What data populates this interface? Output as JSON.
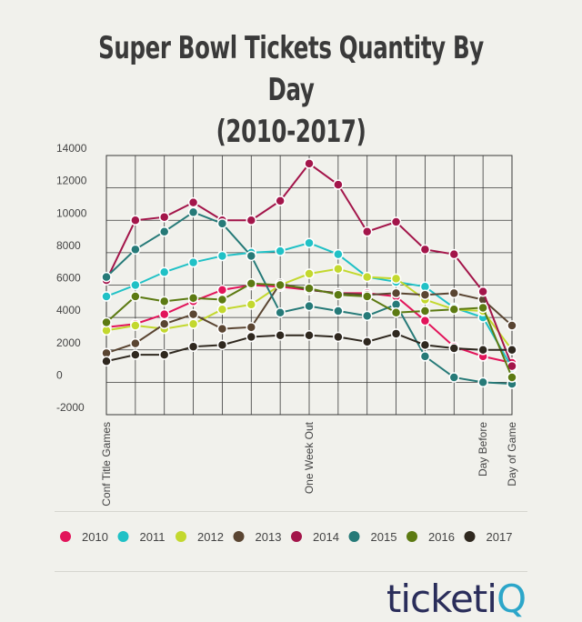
{
  "chart_data": {
    "type": "line",
    "title": "Super Bowl Tickets Quantity By Day",
    "subtitle": "(2010-2017)",
    "xlabel": "",
    "ylabel": "",
    "ylim": [
      -2000,
      14000
    ],
    "yticks": [
      14000,
      12000,
      10000,
      8000,
      6000,
      4000,
      2000,
      0,
      -2000
    ],
    "grid": true,
    "legend_position": "bottom",
    "x_labels": [
      {
        "index": 0,
        "label": "Conf Title Games"
      },
      {
        "index": 7,
        "label": "One Week Out"
      },
      {
        "index": 13,
        "label": "Day Before"
      },
      {
        "index": 14,
        "label": "Day of Game"
      }
    ],
    "series": [
      {
        "name": "2010",
        "color": "#e2145a",
        "values": [
          3400,
          3600,
          4200,
          5000,
          5700,
          6000,
          5900,
          5700,
          5500,
          5500,
          5300,
          3800,
          2200,
          1600,
          1200
        ]
      },
      {
        "name": "2011",
        "color": "#20c1c6",
        "values": [
          5300,
          6000,
          6800,
          7400,
          7800,
          8000,
          8100,
          8600,
          7900,
          6500,
          6200,
          5900,
          4600,
          4000,
          900
        ]
      },
      {
        "name": "2012",
        "color": "#c3d82e",
        "values": [
          3200,
          3500,
          3300,
          3600,
          4500,
          4800,
          6000,
          6700,
          7000,
          6500,
          6400,
          5100,
          4500,
          4400,
          2000
        ]
      },
      {
        "name": "2013",
        "color": "#5a4532",
        "values": [
          1800,
          2400,
          3600,
          4200,
          3300,
          3400,
          6100,
          5700,
          5500,
          5400,
          5500,
          5400,
          5500,
          5100,
          3500
        ]
      },
      {
        "name": "2014",
        "color": "#a3154a",
        "values": [
          6300,
          10000,
          10200,
          11100,
          10000,
          10000,
          11200,
          13500,
          12200,
          9300,
          9900,
          8200,
          7900,
          5600,
          1000
        ]
      },
      {
        "name": "2015",
        "color": "#267a78",
        "values": [
          6500,
          8200,
          9300,
          10500,
          9800,
          7800,
          4300,
          4700,
          4400,
          4100,
          4800,
          1600,
          300,
          0,
          -100
        ]
      },
      {
        "name": "2016",
        "color": "#5c7a12",
        "values": [
          3700,
          5300,
          5000,
          5200,
          5100,
          6100,
          6000,
          5800,
          5400,
          5300,
          4300,
          4400,
          4500,
          4600,
          300
        ]
      },
      {
        "name": "2017",
        "color": "#2f281f",
        "values": [
          1300,
          1700,
          1700,
          2200,
          2300,
          2800,
          2900,
          2900,
          2800,
          2500,
          3000,
          2300,
          2100,
          2000,
          2000
        ]
      }
    ]
  },
  "brand": {
    "main": "ticketi",
    "accent": "Q"
  }
}
